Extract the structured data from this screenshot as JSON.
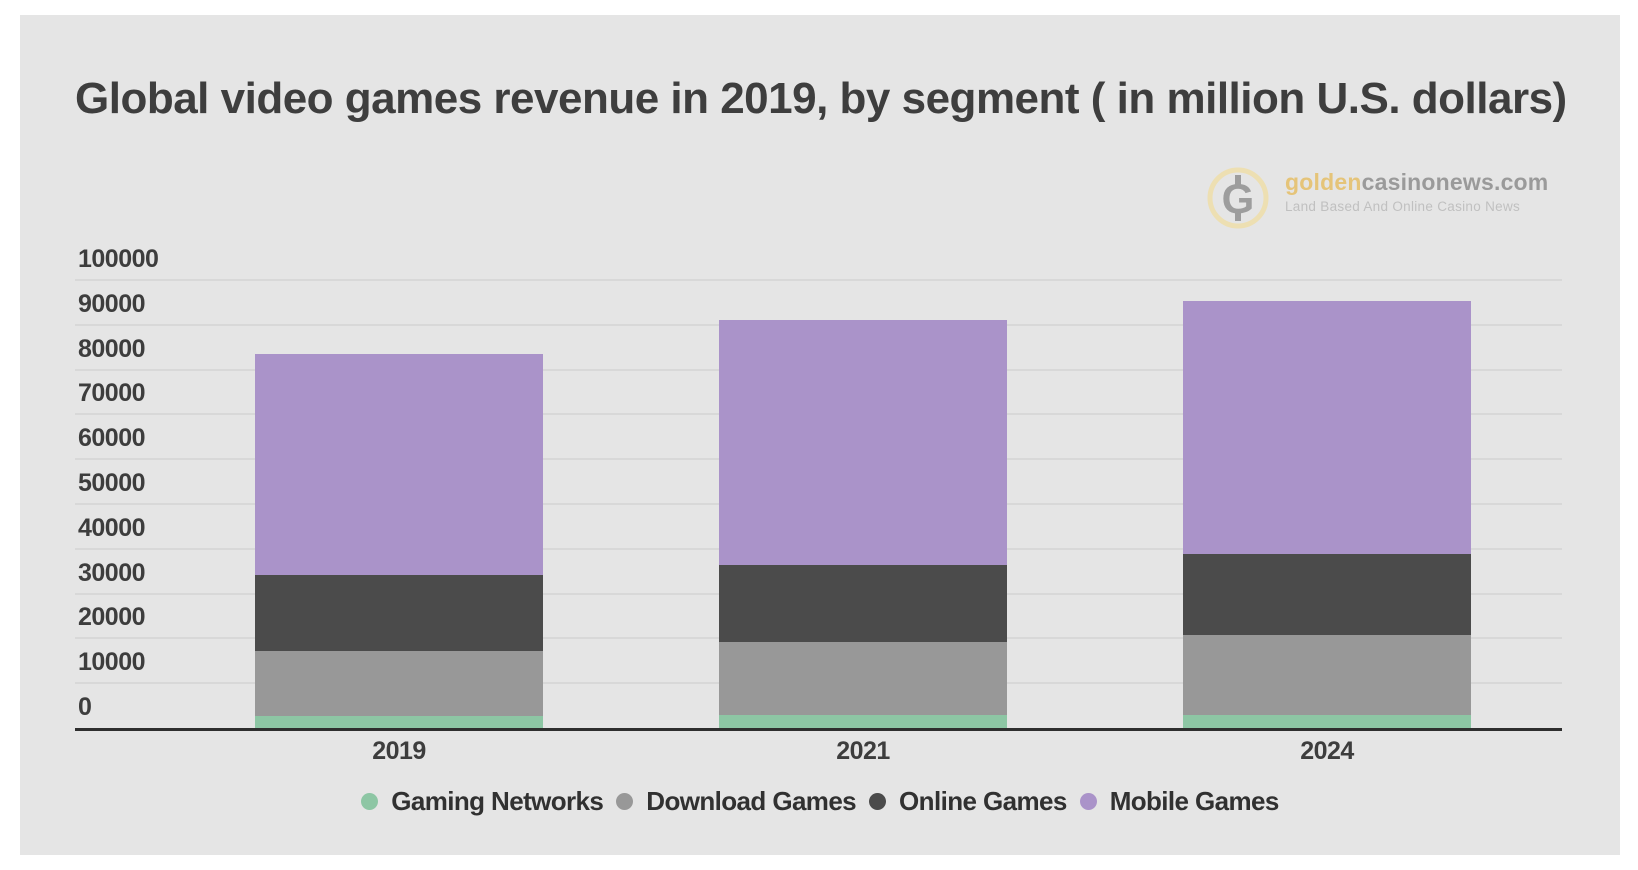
{
  "header": {
    "title": "Global video games revenue in 2019, by segment ( in million U.S. dollars)"
  },
  "logo": {
    "mark_letter": "G",
    "brand_gold": "golden",
    "brand_gray": "casinonews.com",
    "tagline": "Land Based And Online Casino News",
    "gold_color": "#e5c479",
    "ring_color": "#eddfb2",
    "mark_gray_color": "#9d9d9d",
    "gray_color": "#9a9a9a",
    "tagline_color": "#c0c0c0"
  },
  "colors": {
    "card_background": "#e5e5e5",
    "gridline": "#d8d8d8",
    "axis_line": "#2e2e2e",
    "tick_text": "#3d3d3d",
    "title_text": "#3e3e3e"
  },
  "chart_data": {
    "type": "bar",
    "stacked": true,
    "title": "Global video games revenue in 2019, by segment ( in million U.S. dollars)",
    "unit": "million U.S. dollars",
    "categories": [
      "2019",
      "2021",
      "2024"
    ],
    "series": [
      {
        "name": "Gaming Networks",
        "color": "#8dc6a4",
        "values": [
          2600,
          2900,
          2900
        ]
      },
      {
        "name": "Download Games",
        "color": "#989898",
        "values": [
          14600,
          16400,
          17900
        ]
      },
      {
        "name": "Online Games",
        "color": "#4b4b4b",
        "values": [
          16900,
          17100,
          18000
        ]
      },
      {
        "name": "Mobile Games",
        "color": "#aa93c9",
        "values": [
          49300,
          54600,
          56600
        ]
      }
    ],
    "totals": [
      83400,
      91000,
      95400
    ],
    "ylim": [
      0,
      100000
    ],
    "yticks": [
      0,
      10000,
      20000,
      30000,
      40000,
      50000,
      60000,
      70000,
      80000,
      90000,
      100000
    ],
    "grid": true,
    "legend_position": "bottom"
  }
}
